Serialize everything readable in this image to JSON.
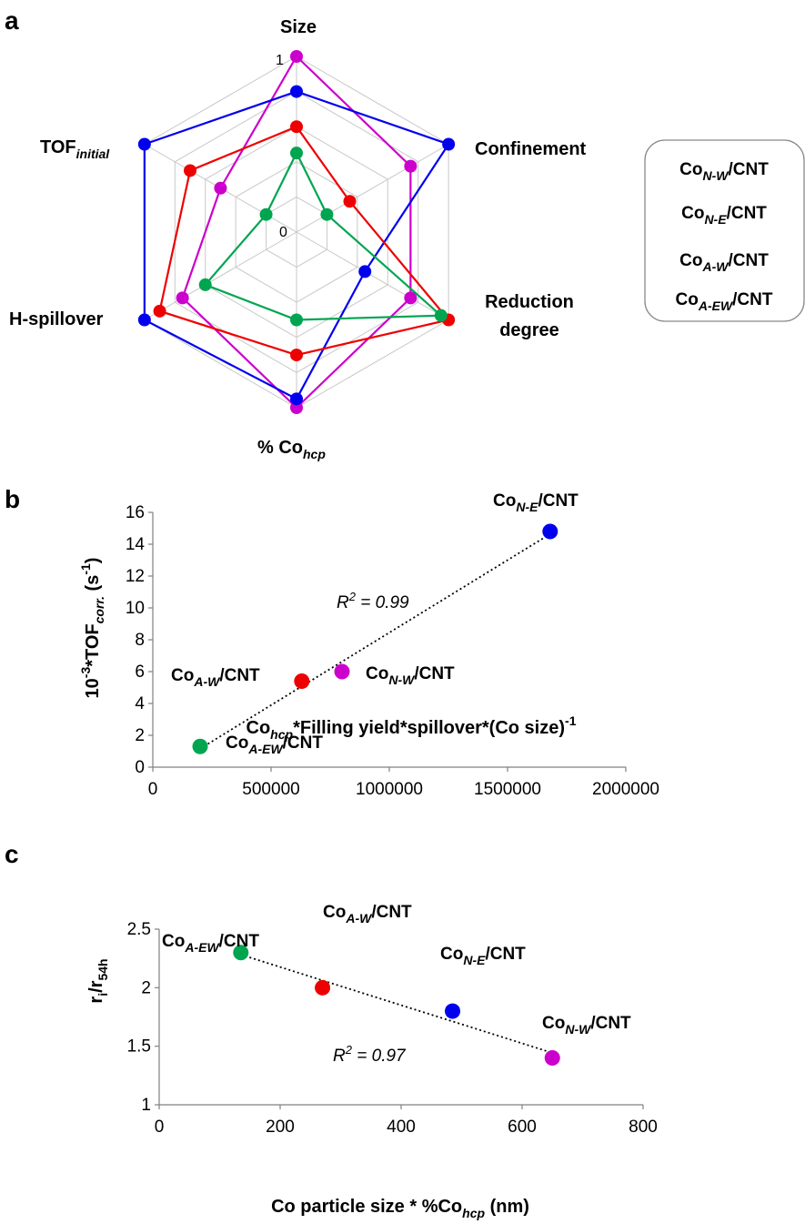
{
  "colors": {
    "N-W": "#cc00cc",
    "N-E": "#0000ee",
    "A-W": "#ee0000",
    "A-EW": "#00a550"
  },
  "labels": {
    "N-W": {
      "pre": "Co",
      "sub": "N-W",
      "post": "/CNT"
    },
    "N-E": {
      "pre": "Co",
      "sub": "N-E",
      "post": "/CNT"
    },
    "A-W": {
      "pre": "Co",
      "sub": "A-W",
      "post": "/CNT"
    },
    "A-EW": {
      "pre": "Co",
      "sub": "A-EW",
      "post": "/CNT"
    }
  },
  "chart_data": [
    {
      "panel": "a",
      "type": "radar",
      "axes": [
        {
          "name": "Size"
        },
        {
          "name": "Confinement"
        },
        {
          "name": "Reduction degree"
        },
        {
          "name": "% Co",
          "sub": "hcp"
        },
        {
          "name": "H-spillover"
        },
        {
          "name": "TOF",
          "sub": "initial"
        }
      ],
      "range": [
        0,
        1
      ],
      "tick_labels": [
        "0",
        "1"
      ],
      "grid_levels": 5,
      "series": [
        {
          "key": "N-W",
          "values": [
            1.0,
            0.75,
            0.75,
            1.0,
            0.75,
            0.5
          ]
        },
        {
          "key": "N-E",
          "values": [
            0.8,
            1.0,
            0.45,
            0.95,
            1.0,
            1.0
          ]
        },
        {
          "key": "A-W",
          "values": [
            0.6,
            0.35,
            1.0,
            0.7,
            0.9,
            0.7
          ]
        },
        {
          "key": "A-EW",
          "values": [
            0.45,
            0.2,
            0.95,
            0.5,
            0.6,
            0.2
          ]
        }
      ]
    },
    {
      "panel": "b",
      "type": "scatter",
      "xlabel": {
        "parts": [
          [
            "Co",
            ""
          ],
          [
            "hcp",
            "sub"
          ],
          [
            "*Filling yield*spillover*(Co size)",
            ""
          ],
          [
            "-1",
            "sup"
          ]
        ]
      },
      "ylabel": {
        "parts": [
          [
            "10",
            ""
          ],
          [
            "-3",
            "sup"
          ],
          [
            "*TOF",
            ""
          ],
          [
            "corr.",
            "sub"
          ],
          [
            " (s",
            ""
          ],
          [
            "-1",
            "sup"
          ],
          [
            ")",
            ""
          ]
        ]
      },
      "xlim": [
        0,
        2000000
      ],
      "ylim": [
        0,
        16
      ],
      "xticks": [
        "0",
        "500000",
        "1000000",
        "1500000",
        "2000000"
      ],
      "yticks": [
        "0",
        "2",
        "4",
        "6",
        "8",
        "10",
        "12",
        "14",
        "16"
      ],
      "points": [
        {
          "key": "A-EW",
          "x": 200000,
          "y": 1.3
        },
        {
          "key": "A-W",
          "x": 630000,
          "y": 5.4
        },
        {
          "key": "N-W",
          "x": 800000,
          "y": 6.0
        },
        {
          "key": "N-E",
          "x": 1680000,
          "y": 14.8
        }
      ],
      "trendline": {
        "r2_text": "R",
        "r2_sup": "2",
        "r2_value": " = 0.99"
      }
    },
    {
      "panel": "c",
      "type": "scatter",
      "xlabel": {
        "parts": [
          [
            "Co particle size * %Co",
            ""
          ],
          [
            "hcp",
            "sub"
          ],
          [
            " (nm)",
            ""
          ]
        ]
      },
      "ylabel": {
        "parts": [
          [
            "r",
            ""
          ],
          [
            "i",
            "sub"
          ],
          [
            "/r",
            ""
          ],
          [
            "54h",
            "sub"
          ]
        ]
      },
      "xlim": [
        0,
        800
      ],
      "ylim": [
        1,
        2.5
      ],
      "xticks": [
        "0",
        "200",
        "400",
        "600",
        "800"
      ],
      "yticks": [
        "1",
        "1.5",
        "2",
        "2.5"
      ],
      "points": [
        {
          "key": "A-EW",
          "x": 135,
          "y": 2.3
        },
        {
          "key": "A-W",
          "x": 270,
          "y": 2.0
        },
        {
          "key": "N-E",
          "x": 485,
          "y": 1.8
        },
        {
          "key": "N-W",
          "x": 650,
          "y": 1.4
        }
      ],
      "trendline": {
        "r2_text": "R",
        "r2_sup": "2",
        "r2_value": " = 0.97"
      }
    }
  ],
  "legend": {
    "order": [
      "N-W",
      "N-E",
      "A-W",
      "A-EW"
    ]
  },
  "panel_letters": [
    "a",
    "b",
    "c"
  ]
}
